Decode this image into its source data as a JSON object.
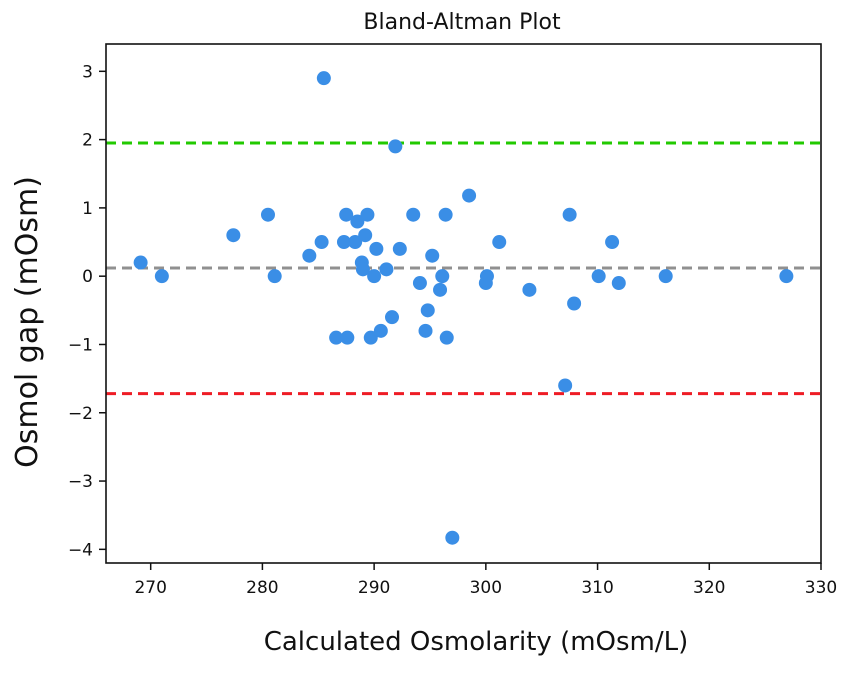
{
  "chart_data": {
    "type": "scatter",
    "title": "Bland-Altman Plot",
    "xlabel": "Calculated Osmolarity (mOsm/L)",
    "ylabel": "Osmol gap (mOsm)",
    "xlim": [
      266,
      330
    ],
    "ylim": [
      -4.2,
      3.4
    ],
    "xticks": [
      270,
      280,
      290,
      300,
      310,
      320,
      330
    ],
    "yticks": [
      3,
      2,
      1,
      0,
      -1,
      -2,
      -3,
      -4
    ],
    "ytick_labels": [
      "3",
      "2",
      "1",
      "0",
      "−1",
      "−2",
      "−3",
      "−4"
    ],
    "grid": false,
    "point_color": "#3a8ee6",
    "reference_lines": [
      {
        "y": 1.95,
        "color": "#22c900",
        "style": "dashed"
      },
      {
        "y": 0.12,
        "color": "#909090",
        "style": "dashed"
      },
      {
        "y": -1.72,
        "color": "#ee1c25",
        "style": "dashed"
      }
    ],
    "points": [
      {
        "x": 269.1,
        "y": 0.2
      },
      {
        "x": 271.0,
        "y": 0.0
      },
      {
        "x": 277.4,
        "y": 0.6
      },
      {
        "x": 280.5,
        "y": 0.9
      },
      {
        "x": 281.1,
        "y": 0.0
      },
      {
        "x": 284.2,
        "y": 0.3
      },
      {
        "x": 285.3,
        "y": 0.5
      },
      {
        "x": 285.5,
        "y": 2.9
      },
      {
        "x": 286.6,
        "y": -0.9
      },
      {
        "x": 287.3,
        "y": 0.5
      },
      {
        "x": 287.5,
        "y": 0.9
      },
      {
        "x": 287.6,
        "y": -0.9
      },
      {
        "x": 288.3,
        "y": 0.5
      },
      {
        "x": 288.5,
        "y": 0.8
      },
      {
        "x": 288.9,
        "y": 0.2
      },
      {
        "x": 289.0,
        "y": 0.1
      },
      {
        "x": 289.2,
        "y": 0.6
      },
      {
        "x": 289.4,
        "y": 0.9
      },
      {
        "x": 289.7,
        "y": -0.9
      },
      {
        "x": 290.0,
        "y": 0.0
      },
      {
        "x": 290.2,
        "y": 0.4
      },
      {
        "x": 290.6,
        "y": -0.8
      },
      {
        "x": 291.1,
        "y": 0.1
      },
      {
        "x": 291.6,
        "y": -0.6
      },
      {
        "x": 291.9,
        "y": 1.9
      },
      {
        "x": 292.3,
        "y": 0.4
      },
      {
        "x": 293.5,
        "y": 0.9
      },
      {
        "x": 294.1,
        "y": -0.1
      },
      {
        "x": 294.6,
        "y": -0.8
      },
      {
        "x": 294.8,
        "y": -0.5
      },
      {
        "x": 295.2,
        "y": 0.3
      },
      {
        "x": 295.9,
        "y": -0.2
      },
      {
        "x": 296.1,
        "y": 0.0
      },
      {
        "x": 296.4,
        "y": 0.9
      },
      {
        "x": 296.5,
        "y": -0.9
      },
      {
        "x": 297.0,
        "y": -3.83
      },
      {
        "x": 298.5,
        "y": 1.18
      },
      {
        "x": 300.0,
        "y": -0.1
      },
      {
        "x": 300.1,
        "y": 0.0
      },
      {
        "x": 301.2,
        "y": 0.5
      },
      {
        "x": 303.9,
        "y": -0.2
      },
      {
        "x": 307.1,
        "y": -1.6
      },
      {
        "x": 307.5,
        "y": 0.9
      },
      {
        "x": 307.9,
        "y": -0.4
      },
      {
        "x": 310.1,
        "y": 0.0
      },
      {
        "x": 311.3,
        "y": 0.5
      },
      {
        "x": 311.9,
        "y": -0.1
      },
      {
        "x": 316.1,
        "y": 0.0
      },
      {
        "x": 326.9,
        "y": 0.0
      }
    ]
  }
}
